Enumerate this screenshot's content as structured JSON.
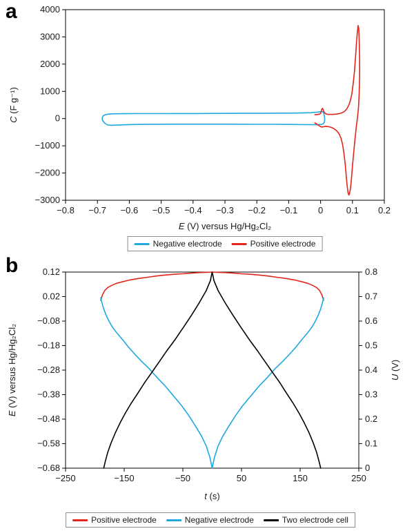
{
  "panels": [
    {
      "label": "a"
    },
    {
      "label": "b"
    }
  ],
  "colors": {
    "negative_electrode": "#1fa8e0",
    "positive_electrode": "#e1251b",
    "two_electrode_cell": "#000000",
    "frame": "#000000"
  },
  "chart_data": [
    {
      "type": "line",
      "panel": "a",
      "title": "",
      "xlabel": "E (V) versus Hg/Hg₂Cl₂",
      "ylabel": "C (F g⁻¹)",
      "xlim": [
        -0.8,
        0.2
      ],
      "ylim": [
        -3000,
        4000
      ],
      "xticks": [
        -0.8,
        -0.7,
        -0.6,
        -0.5,
        -0.4,
        -0.3,
        -0.2,
        -0.1,
        0,
        0.1,
        0.2
      ],
      "yticks": [
        4000,
        3000,
        2000,
        1000,
        0,
        -1000,
        -2000,
        -3000
      ],
      "grid": false,
      "legend_position": "bottom",
      "series": [
        {
          "name": "Negative electrode",
          "color": "#1fa8e0",
          "axis": "left",
          "points": [
            [
              -0.685,
              20
            ],
            [
              -0.682,
              100
            ],
            [
              -0.675,
              145
            ],
            [
              -0.665,
              165
            ],
            [
              -0.65,
              175
            ],
            [
              -0.62,
              180
            ],
            [
              -0.58,
              182
            ],
            [
              -0.54,
              183
            ],
            [
              -0.5,
              184
            ],
            [
              -0.45,
              185
            ],
            [
              -0.4,
              186
            ],
            [
              -0.35,
              188
            ],
            [
              -0.3,
              190
            ],
            [
              -0.25,
              192
            ],
            [
              -0.2,
              194
            ],
            [
              -0.15,
              197
            ],
            [
              -0.1,
              201
            ],
            [
              -0.06,
              207
            ],
            [
              -0.03,
              216
            ],
            [
              -0.01,
              235
            ],
            [
              0,
              252
            ],
            [
              0.006,
              258
            ],
            [
              0.01,
              200
            ],
            [
              0.012,
              90
            ],
            [
              0.013,
              -40
            ],
            [
              0.012,
              -130
            ],
            [
              0.009,
              -185
            ],
            [
              0.004,
              -215
            ],
            [
              -0.01,
              -225
            ],
            [
              -0.05,
              -222
            ],
            [
              -0.1,
              -215
            ],
            [
              -0.15,
              -211
            ],
            [
              -0.2,
              -209
            ],
            [
              -0.25,
              -207
            ],
            [
              -0.3,
              -206
            ],
            [
              -0.35,
              -205
            ],
            [
              -0.4,
              -205
            ],
            [
              -0.45,
              -206
            ],
            [
              -0.5,
              -208
            ],
            [
              -0.55,
              -212
            ],
            [
              -0.6,
              -220
            ],
            [
              -0.63,
              -232
            ],
            [
              -0.655,
              -245
            ],
            [
              -0.668,
              -235
            ],
            [
              -0.678,
              -160
            ],
            [
              -0.684,
              -60
            ],
            [
              -0.685,
              20
            ]
          ]
        },
        {
          "name": "Positive electrode",
          "color": "#e1251b",
          "axis": "left",
          "points": [
            [
              -0.018,
              140
            ],
            [
              -0.01,
              150
            ],
            [
              -0.003,
              165
            ],
            [
              0,
              185
            ],
            [
              0.002,
              260
            ],
            [
              0.004,
              345
            ],
            [
              0.006,
              375
            ],
            [
              0.008,
              330
            ],
            [
              0.011,
              240
            ],
            [
              0.015,
              185
            ],
            [
              0.02,
              160
            ],
            [
              0.03,
              152
            ],
            [
              0.04,
              155
            ],
            [
              0.05,
              165
            ],
            [
              0.06,
              185
            ],
            [
              0.068,
              215
            ],
            [
              0.075,
              265
            ],
            [
              0.082,
              350
            ],
            [
              0.088,
              480
            ],
            [
              0.093,
              650
            ],
            [
              0.098,
              900
            ],
            [
              0.102,
              1250
            ],
            [
              0.106,
              1700
            ],
            [
              0.11,
              2300
            ],
            [
              0.113,
              2850
            ],
            [
              0.116,
              3250
            ],
            [
              0.118,
              3420
            ],
            [
              0.12,
              3280
            ],
            [
              0.1215,
              2750
            ],
            [
              0.1225,
              2100
            ],
            [
              0.1225,
              1500
            ],
            [
              0.121,
              900
            ],
            [
              0.119,
              420
            ],
            [
              0.116,
              60
            ],
            [
              0.112,
              -320
            ],
            [
              0.108,
              -750
            ],
            [
              0.104,
              -1250
            ],
            [
              0.1,
              -1750
            ],
            [
              0.097,
              -2200
            ],
            [
              0.094,
              -2550
            ],
            [
              0.091,
              -2760
            ],
            [
              0.0885,
              -2810
            ],
            [
              0.086,
              -2700
            ],
            [
              0.083,
              -2420
            ],
            [
              0.08,
              -2050
            ],
            [
              0.077,
              -1650
            ],
            [
              0.073,
              -1250
            ],
            [
              0.069,
              -950
            ],
            [
              0.064,
              -720
            ],
            [
              0.058,
              -560
            ],
            [
              0.05,
              -440
            ],
            [
              0.042,
              -370
            ],
            [
              0.034,
              -325
            ],
            [
              0.026,
              -300
            ],
            [
              0.018,
              -290
            ],
            [
              0.012,
              -295
            ],
            [
              0.007,
              -305
            ],
            [
              0.003,
              -310
            ],
            [
              0,
              -295
            ],
            [
              -0.006,
              -250
            ],
            [
              -0.012,
              -200
            ],
            [
              -0.018,
              -160
            ]
          ]
        }
      ]
    },
    {
      "type": "line",
      "panel": "b",
      "title": "",
      "xlabel": "t (s)",
      "ylabel_left": "E (V) versus Hg/Hg₂Cl₂",
      "ylabel_right": "U (V)",
      "xlim": [
        -250,
        250
      ],
      "ylim_left": [
        -0.68,
        0.12
      ],
      "ylim_right": [
        0,
        0.8
      ],
      "xticks": [
        -250,
        -150,
        -50,
        50,
        150,
        250
      ],
      "yticks_left": [
        0.12,
        0.02,
        -0.08,
        -0.18,
        -0.28,
        -0.38,
        -0.48,
        -0.58,
        -0.68
      ],
      "yticks_right": [
        0.8,
        0.7,
        0.6,
        0.5,
        0.4,
        0.3,
        0.2,
        0.1,
        0
      ],
      "grid": false,
      "legend_position": "bottom",
      "series": [
        {
          "name": "Positive electrode",
          "color": "#e1251b",
          "axis": "left",
          "points": [
            [
              -190,
              0.005
            ],
            [
              -187,
              0.028
            ],
            [
              -183,
              0.045
            ],
            [
              -178,
              0.057
            ],
            [
              -171,
              0.066
            ],
            [
              -163,
              0.074
            ],
            [
              -152,
              0.081
            ],
            [
              -140,
              0.088
            ],
            [
              -125,
              0.094
            ],
            [
              -110,
              0.099
            ],
            [
              -95,
              0.104
            ],
            [
              -80,
              0.108
            ],
            [
              -65,
              0.111
            ],
            [
              -50,
              0.113
            ],
            [
              -35,
              0.116
            ],
            [
              -20,
              0.118
            ],
            [
              -10,
              0.119
            ],
            [
              0,
              0.12
            ],
            [
              10,
              0.119
            ],
            [
              20,
              0.118
            ],
            [
              35,
              0.116
            ],
            [
              50,
              0.113
            ],
            [
              65,
              0.111
            ],
            [
              80,
              0.108
            ],
            [
              95,
              0.104
            ],
            [
              110,
              0.099
            ],
            [
              125,
              0.094
            ],
            [
              140,
              0.088
            ],
            [
              152,
              0.081
            ],
            [
              163,
              0.074
            ],
            [
              171,
              0.066
            ],
            [
              178,
              0.057
            ],
            [
              183,
              0.045
            ],
            [
              187,
              0.028
            ],
            [
              190,
              0.005
            ]
          ]
        },
        {
          "name": "Negative electrode",
          "color": "#1fa8e0",
          "axis": "left",
          "points": [
            [
              -190,
              0.015
            ],
            [
              -188,
              -0.005
            ],
            [
              -185,
              -0.03
            ],
            [
              -181,
              -0.055
            ],
            [
              -176,
              -0.08
            ],
            [
              -170,
              -0.105
            ],
            [
              -162,
              -0.13
            ],
            [
              -153,
              -0.155
            ],
            [
              -143,
              -0.185
            ],
            [
              -132,
              -0.215
            ],
            [
              -120,
              -0.245
            ],
            [
              -107,
              -0.275
            ],
            [
              -94,
              -0.31
            ],
            [
              -80,
              -0.345
            ],
            [
              -66,
              -0.385
            ],
            [
              -52,
              -0.425
            ],
            [
              -40,
              -0.465
            ],
            [
              -28,
              -0.51
            ],
            [
              -18,
              -0.55
            ],
            [
              -10,
              -0.59
            ],
            [
              -4,
              -0.635
            ],
            [
              0,
              -0.68
            ],
            [
              4,
              -0.635
            ],
            [
              10,
              -0.59
            ],
            [
              18,
              -0.55
            ],
            [
              28,
              -0.51
            ],
            [
              40,
              -0.465
            ],
            [
              52,
              -0.425
            ],
            [
              66,
              -0.385
            ],
            [
              80,
              -0.345
            ],
            [
              94,
              -0.31
            ],
            [
              107,
              -0.275
            ],
            [
              120,
              -0.245
            ],
            [
              132,
              -0.215
            ],
            [
              143,
              -0.185
            ],
            [
              153,
              -0.155
            ],
            [
              162,
              -0.13
            ],
            [
              170,
              -0.105
            ],
            [
              176,
              -0.08
            ],
            [
              181,
              -0.055
            ],
            [
              185,
              -0.03
            ],
            [
              188,
              -0.005
            ],
            [
              190,
              0.015
            ]
          ]
        },
        {
          "name": "Two electrode cell",
          "color": "#000000",
          "axis": "right",
          "points": [
            [
              -185,
              0
            ],
            [
              -182,
              0.03
            ],
            [
              -178,
              0.065
            ],
            [
              -172,
              0.105
            ],
            [
              -165,
              0.145
            ],
            [
              -157,
              0.185
            ],
            [
              -148,
              0.225
            ],
            [
              -138,
              0.265
            ],
            [
              -127,
              0.305
            ],
            [
              -115,
              0.35
            ],
            [
              -103,
              0.39
            ],
            [
              -90,
              0.435
            ],
            [
              -77,
              0.48
            ],
            [
              -63,
              0.525
            ],
            [
              -49,
              0.575
            ],
            [
              -35,
              0.625
            ],
            [
              -22,
              0.675
            ],
            [
              -10,
              0.725
            ],
            [
              -3,
              0.765
            ],
            [
              0,
              0.8
            ],
            [
              3,
              0.765
            ],
            [
              10,
              0.725
            ],
            [
              22,
              0.675
            ],
            [
              35,
              0.625
            ],
            [
              49,
              0.575
            ],
            [
              63,
              0.525
            ],
            [
              77,
              0.48
            ],
            [
              90,
              0.435
            ],
            [
              103,
              0.39
            ],
            [
              115,
              0.35
            ],
            [
              127,
              0.305
            ],
            [
              138,
              0.265
            ],
            [
              148,
              0.225
            ],
            [
              157,
              0.185
            ],
            [
              165,
              0.145
            ],
            [
              172,
              0.105
            ],
            [
              178,
              0.065
            ],
            [
              182,
              0.03
            ],
            [
              185,
              0
            ]
          ]
        }
      ]
    }
  ]
}
